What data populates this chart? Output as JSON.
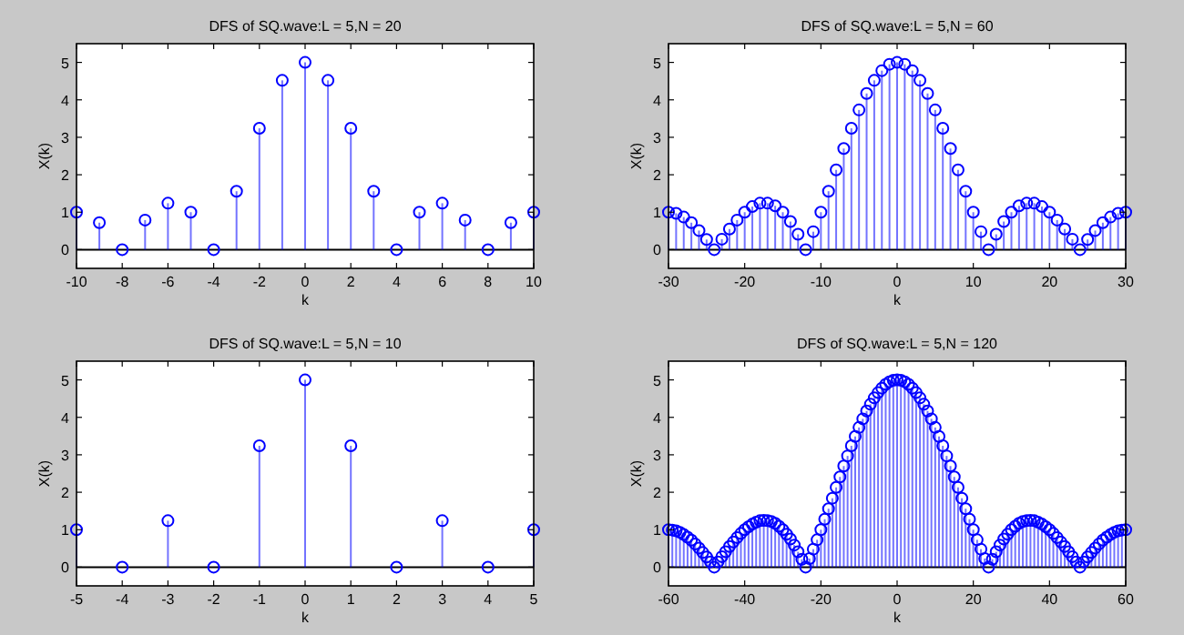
{
  "chart_data": [
    {
      "type": "lollipop",
      "title": "DFS of SQ.wave:L = 5,N = 20",
      "xlabel": "k",
      "ylabel": "X(k)",
      "marker": "circle",
      "grid": false,
      "xlim": [
        -10,
        10
      ],
      "xticks": [
        -10,
        -8,
        -6,
        -4,
        -2,
        0,
        2,
        4,
        6,
        8,
        10
      ],
      "ylim": [
        -0.5,
        5.5
      ],
      "yticks": [
        0,
        1,
        2,
        3,
        4,
        5
      ],
      "ref_lines": [
        {
          "axis": "y",
          "value": 0,
          "color": "#000000"
        }
      ],
      "series": [
        {
          "color": "#0000ff",
          "x": [
            -10,
            -9,
            -8,
            -7,
            -6,
            -5,
            -4,
            -3,
            -2,
            -1,
            0,
            1,
            2,
            3,
            4,
            5,
            6,
            7,
            8,
            9,
            10
          ],
          "values": [
            1,
            0.72,
            0,
            0.79,
            1.24,
            1,
            0,
            1.56,
            3.24,
            4.52,
            5,
            4.52,
            3.24,
            1.56,
            0,
            1,
            1.24,
            0.79,
            0,
            0.72,
            1
          ]
        }
      ]
    },
    {
      "type": "lollipop",
      "title": "DFS of SQ.wave:L = 5,N = 60",
      "xlabel": "k",
      "ylabel": "X(k)",
      "marker": "circle",
      "grid": false,
      "xlim": [
        -30,
        30
      ],
      "xticks": [
        -30,
        -20,
        -10,
        0,
        10,
        20,
        30
      ],
      "ylim": [
        -0.5,
        5.5
      ],
      "yticks": [
        0,
        1,
        2,
        3,
        4,
        5
      ],
      "ref_lines": [
        {
          "axis": "y",
          "value": 0,
          "color": "#000000"
        }
      ],
      "series": [
        {
          "color": "#0000ff",
          "x": [
            -30,
            -29,
            -28,
            -27,
            -26,
            -25,
            -24,
            -23,
            -22,
            -21,
            -20,
            -19,
            -18,
            -17,
            -16,
            -15,
            -14,
            -13,
            -12,
            -11,
            -10,
            -9,
            -8,
            -7,
            -6,
            -5,
            -4,
            -3,
            -2,
            -1,
            0,
            1,
            2,
            3,
            4,
            5,
            6,
            7,
            8,
            9,
            10,
            11,
            12,
            13,
            14,
            15,
            16,
            17,
            18,
            19,
            20,
            21,
            22,
            23,
            24,
            25,
            26,
            27,
            28,
            29,
            30
          ],
          "values": [
            1,
            0.97,
            0.87,
            0.72,
            0.51,
            0.27,
            0,
            0.28,
            0.55,
            0.79,
            1,
            1.15,
            1.24,
            1.24,
            1.17,
            1,
            0.75,
            0.41,
            0,
            0.48,
            1,
            1.56,
            2.13,
            2.7,
            3.24,
            3.73,
            4.17,
            4.52,
            4.78,
            4.95,
            5,
            4.95,
            4.78,
            4.52,
            4.17,
            3.73,
            3.24,
            2.7,
            2.13,
            1.56,
            1,
            0.48,
            0,
            0.41,
            0.75,
            1,
            1.17,
            1.24,
            1.24,
            1.15,
            1,
            0.79,
            0.55,
            0.28,
            0,
            0.27,
            0.51,
            0.72,
            0.87,
            0.97,
            1
          ]
        }
      ]
    },
    {
      "type": "lollipop",
      "title": "DFS of SQ.wave:L = 5,N = 10",
      "xlabel": "k",
      "ylabel": "X(k)",
      "marker": "circle",
      "grid": false,
      "xlim": [
        -5,
        5
      ],
      "xticks": [
        -5,
        -4,
        -3,
        -2,
        -1,
        0,
        1,
        2,
        3,
        4,
        5
      ],
      "ylim": [
        -0.5,
        5.5
      ],
      "yticks": [
        0,
        1,
        2,
        3,
        4,
        5
      ],
      "ref_lines": [
        {
          "axis": "y",
          "value": 0,
          "color": "#000000"
        }
      ],
      "series": [
        {
          "color": "#0000ff",
          "x": [
            -5,
            -4,
            -3,
            -2,
            -1,
            0,
            1,
            2,
            3,
            4,
            5
          ],
          "values": [
            1,
            0,
            1.24,
            0,
            3.24,
            5,
            3.24,
            0,
            1.24,
            0,
            1
          ]
        }
      ]
    },
    {
      "type": "lollipop",
      "title": "DFS of SQ.wave:L = 5,N = 120",
      "xlabel": "k",
      "ylabel": "X(k)",
      "marker": "circle",
      "grid": false,
      "xlim": [
        -60,
        60
      ],
      "xticks": [
        -60,
        -40,
        -20,
        0,
        20,
        40,
        60
      ],
      "ylim": [
        -0.5,
        5.5
      ],
      "yticks": [
        0,
        1,
        2,
        3,
        4,
        5
      ],
      "ref_lines": [
        {
          "axis": "y",
          "value": 0,
          "color": "#000000"
        }
      ],
      "series": [
        {
          "color": "#0000ff",
          "x": [
            -60,
            -59,
            -58,
            -57,
            -56,
            -55,
            -54,
            -53,
            -52,
            -51,
            -50,
            -49,
            -48,
            -47,
            -46,
            -45,
            -44,
            -43,
            -42,
            -41,
            -40,
            -39,
            -38,
            -37,
            -36,
            -35,
            -34,
            -33,
            -32,
            -31,
            -30,
            -29,
            -28,
            -27,
            -26,
            -25,
            -24,
            -23,
            -22,
            -21,
            -20,
            -19,
            -18,
            -17,
            -16,
            -15,
            -14,
            -13,
            -12,
            -11,
            -10,
            -9,
            -8,
            -7,
            -6,
            -5,
            -4,
            -3,
            -2,
            -1,
            0,
            1,
            2,
            3,
            4,
            5,
            6,
            7,
            8,
            9,
            10,
            11,
            12,
            13,
            14,
            15,
            16,
            17,
            18,
            19,
            20,
            21,
            22,
            23,
            24,
            25,
            26,
            27,
            28,
            29,
            30,
            31,
            32,
            33,
            34,
            35,
            36,
            37,
            38,
            39,
            40,
            41,
            42,
            43,
            44,
            45,
            46,
            47,
            48,
            49,
            50,
            51,
            52,
            53,
            54,
            55,
            56,
            57,
            58,
            59,
            60
          ],
          "values": [
            1,
            0.99,
            0.97,
            0.93,
            0.87,
            0.8,
            0.72,
            0.62,
            0.51,
            0.39,
            0.27,
            0.14,
            0,
            0.14,
            0.28,
            0.41,
            0.55,
            0.67,
            0.79,
            0.9,
            1,
            1.08,
            1.15,
            1.2,
            1.24,
            1.25,
            1.24,
            1.22,
            1.17,
            1.09,
            1,
            0.88,
            0.75,
            0.59,
            0.41,
            0.21,
            0,
            0.23,
            0.48,
            0.73,
            1,
            1.28,
            1.56,
            1.84,
            2.13,
            2.41,
            2.7,
            2.97,
            3.24,
            3.49,
            3.73,
            3.96,
            4.17,
            4.35,
            4.52,
            4.66,
            4.78,
            4.88,
            4.95,
            4.99,
            5,
            4.99,
            4.95,
            4.88,
            4.78,
            4.66,
            4.52,
            4.35,
            4.17,
            3.96,
            3.73,
            3.49,
            3.24,
            2.97,
            2.7,
            2.41,
            2.13,
            1.84,
            1.56,
            1.28,
            1,
            0.73,
            0.48,
            0.23,
            0,
            0.21,
            0.41,
            0.59,
            0.75,
            0.88,
            1,
            1.09,
            1.17,
            1.22,
            1.24,
            1.25,
            1.24,
            1.2,
            1.15,
            1.08,
            1,
            0.9,
            0.79,
            0.67,
            0.55,
            0.41,
            0.28,
            0.14,
            0,
            0.14,
            0.27,
            0.39,
            0.51,
            0.62,
            0.72,
            0.8,
            0.87,
            0.93,
            0.97,
            0.99,
            1
          ]
        }
      ]
    }
  ]
}
